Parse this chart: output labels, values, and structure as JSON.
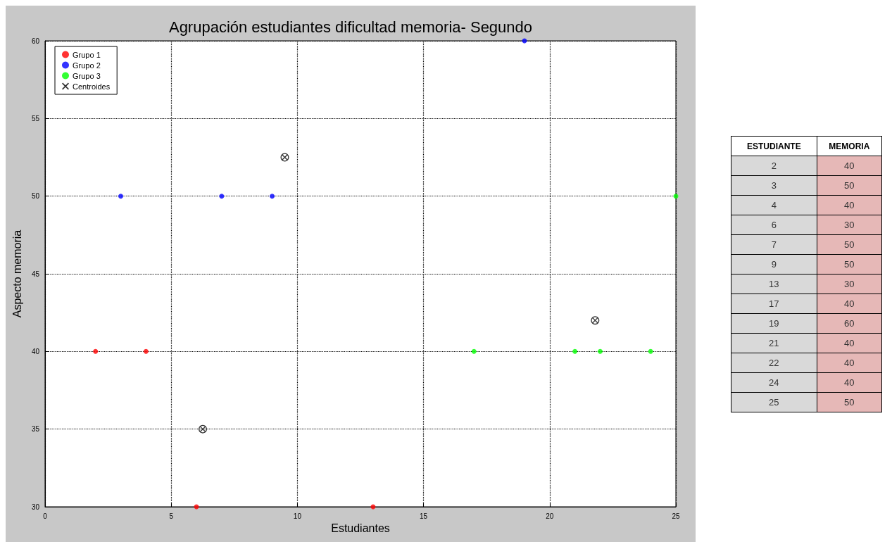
{
  "chart_data": [
    {
      "type": "scatter",
      "title": "Agrupación estudiantes dificultad memoria- Segundo",
      "xlabel": "Estudiantes",
      "ylabel": "Aspecto memoria",
      "xlim": [
        0,
        25
      ],
      "xticks": [
        0,
        5,
        10,
        15,
        20,
        25
      ],
      "ylim": [
        30,
        60
      ],
      "yticks": [
        30,
        35,
        40,
        45,
        50,
        55,
        60
      ],
      "grid": true,
      "legend": "top left",
      "marker": "circle",
      "series": [
        {
          "name": "Grupo 1",
          "color": "#ff0000",
          "x": [
            2,
            4,
            6,
            13
          ],
          "values": [
            40,
            40,
            30,
            30
          ]
        },
        {
          "name": "Grupo 2",
          "color": "#0000ff",
          "x": [
            3,
            7,
            9,
            19
          ],
          "values": [
            50,
            50,
            50,
            60
          ]
        },
        {
          "name": "Grupo 3",
          "color": "#00ff00",
          "x": [
            17,
            21,
            22,
            24,
            25
          ],
          "values": [
            40,
            40,
            40,
            40,
            50
          ]
        },
        {
          "name": "Centroides",
          "color": "#000000",
          "marker": "cross",
          "x": [
            6.25,
            9.5,
            21.8
          ],
          "values": [
            35,
            52.5,
            42
          ]
        }
      ]
    },
    {
      "type": "other",
      "annotations": [
        "ESTUDIANTE",
        "MEMORIA",
        "2",
        "40",
        "3",
        "50",
        "4",
        "40",
        "6",
        "30",
        "7",
        "50",
        "9",
        "50",
        "13",
        "30",
        "17",
        "40",
        "19",
        "60",
        "21",
        "40",
        "22",
        "40",
        "24",
        "40",
        "25",
        "50"
      ]
    }
  ]
}
